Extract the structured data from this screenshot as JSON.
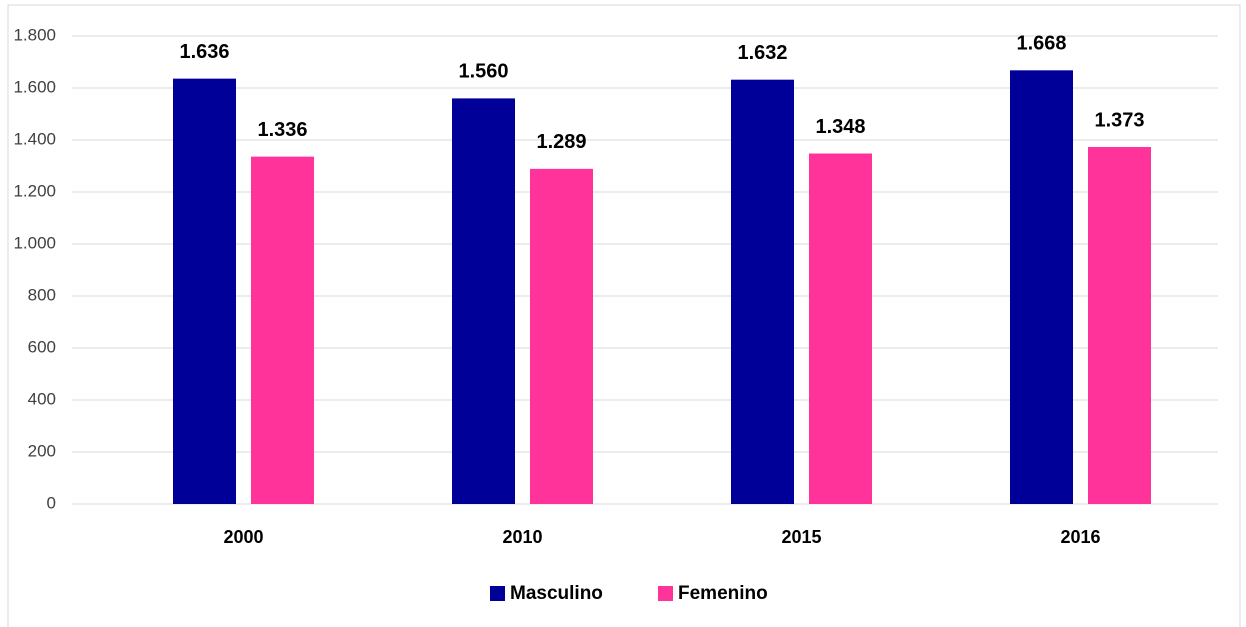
{
  "chart_data": {
    "type": "bar",
    "categories": [
      "2000",
      "2010",
      "2015",
      "2016"
    ],
    "series": [
      {
        "name": "Masculino",
        "color": "#000099",
        "values": [
          1636,
          1560,
          1632,
          1668
        ],
        "value_labels": [
          "1.636",
          "1.560",
          "1.632",
          "1.668"
        ]
      },
      {
        "name": "Femenino",
        "color": "#ff3399",
        "values": [
          1336,
          1289,
          1348,
          1373
        ],
        "value_labels": [
          "1.336",
          "1.289",
          "1.348",
          "1.373"
        ]
      }
    ],
    "ylim": [
      0,
      1800
    ],
    "yticks": [
      0,
      200,
      400,
      600,
      800,
      {
        "value": 1000,
        "label": "1.000"
      },
      {
        "value": 1200,
        "label": "1.200"
      },
      {
        "value": 1400,
        "label": "1.400"
      },
      {
        "value": 1600,
        "label": "1.600"
      },
      {
        "value": 1800,
        "label": "1.800"
      }
    ],
    "grid": true,
    "legend": "bottom"
  }
}
